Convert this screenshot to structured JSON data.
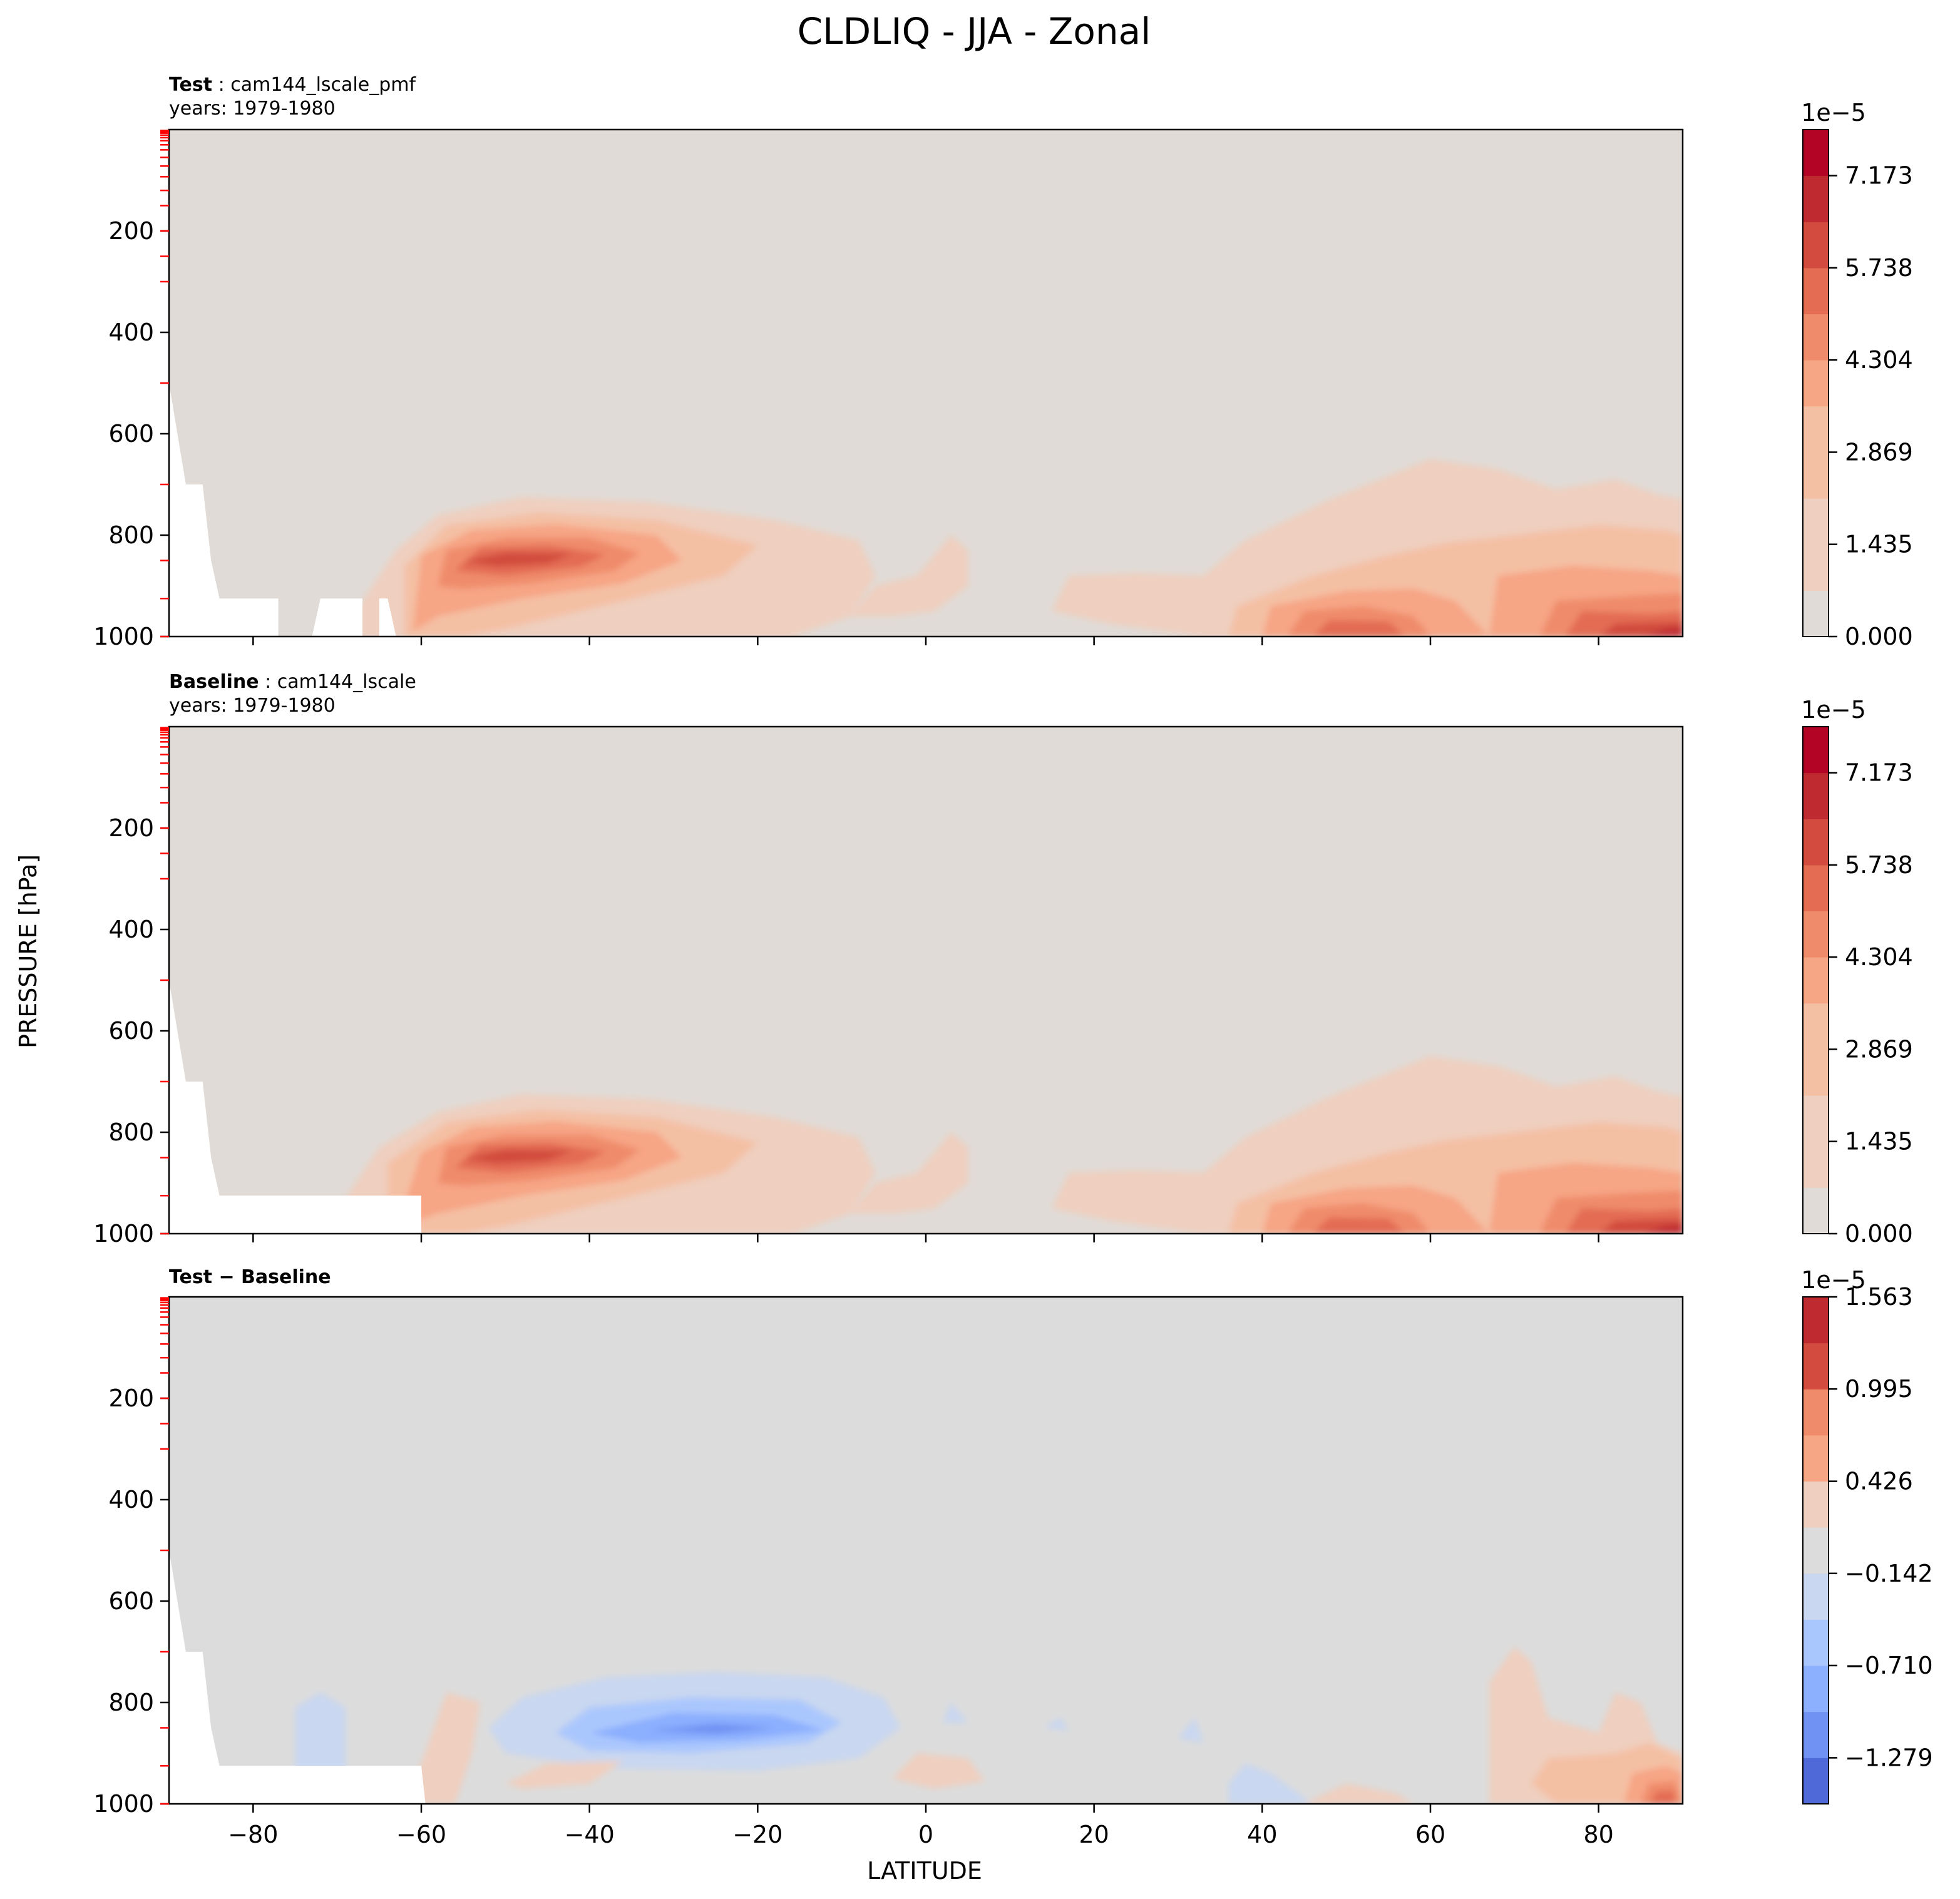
{
  "figure": {
    "title": "CLDLIQ - JJA - Zonal",
    "ylabel": "PRESSURE [hPa]",
    "xlabel": "LATITUDE"
  },
  "colors": {
    "background_field": "#e0dbd6",
    "diff_background": "#dcdcdc",
    "missing": "#ffffff",
    "warm": [
      "#e0dbd6",
      "#efcfbf",
      "#f4c0a4",
      "#f6a585",
      "#ef8b6a",
      "#e36c53",
      "#d24b3e",
      "#bf2a31",
      "#b40426"
    ],
    "cool": [
      "#c9d7f0",
      "#aac7fd",
      "#8caffe",
      "#6f92f3",
      "#4f69d9"
    ],
    "level_tick": "#ff0000"
  },
  "chart_data": [
    {
      "type": "contourf",
      "panel_label": "Test",
      "case_name": "cam144_lscale_pmf",
      "years": "years: 1979-1980",
      "xlim": [
        -90,
        90
      ],
      "ylim": [
        1000,
        0
      ],
      "xticks": [
        "−80",
        "−60",
        "−40",
        "−20",
        "0",
        "20",
        "40",
        "60",
        "80"
      ],
      "xtick_values": [
        -80,
        -60,
        -40,
        -20,
        0,
        20,
        40,
        60,
        80
      ],
      "yticks": [
        "200",
        "400",
        "600",
        "800",
        "1000"
      ],
      "ytick_values": [
        200,
        400,
        600,
        800,
        1000
      ],
      "colorbar": {
        "offset": "1e−5",
        "ticks": [
          "0.000",
          "1.435",
          "2.869",
          "4.304",
          "5.738",
          "7.173"
        ],
        "tick_values": [
          0,
          1.435,
          2.869,
          4.304,
          5.738,
          7.173
        ],
        "range": [
          0,
          7.89
        ],
        "levels": 11
      },
      "features": [
        {
          "name": "southern-midlatitude-max",
          "lat_range": [
            -70,
            -10
          ],
          "p_range": [
            720,
            1000
          ],
          "peak_lat": -50,
          "peak_p": 850,
          "peak_value": 4.8
        },
        {
          "name": "equatorial-lobe",
          "lat_range": [
            -10,
            5
          ],
          "p_range": [
            780,
            960
          ],
          "peak_value": 1.4
        },
        {
          "name": "northern-max",
          "lat_range": [
            15,
            90
          ],
          "p_range": [
            640,
            1000
          ],
          "peak_lat": 88,
          "peak_p": 990,
          "peak_value": 7.5
        }
      ]
    },
    {
      "type": "contourf",
      "panel_label": "Baseline",
      "case_name": "cam144_lscale",
      "years": "years: 1979-1980",
      "xlim": [
        -90,
        90
      ],
      "ylim": [
        1000,
        0
      ],
      "xticks": [
        "−80",
        "−60",
        "−40",
        "−20",
        "0",
        "20",
        "40",
        "60",
        "80"
      ],
      "xtick_values": [
        -80,
        -60,
        -40,
        -20,
        0,
        20,
        40,
        60,
        80
      ],
      "yticks": [
        "200",
        "400",
        "600",
        "800",
        "1000"
      ],
      "ytick_values": [
        200,
        400,
        600,
        800,
        1000
      ],
      "colorbar": {
        "offset": "1e−5",
        "ticks": [
          "0.000",
          "1.435",
          "2.869",
          "4.304",
          "5.738",
          "7.173"
        ],
        "tick_values": [
          0,
          1.435,
          2.869,
          4.304,
          5.738,
          7.173
        ],
        "range": [
          0,
          7.89
        ],
        "levels": 11
      },
      "features": [
        {
          "name": "southern-midlatitude-max",
          "lat_range": [
            -75,
            -5
          ],
          "p_range": [
            710,
            1000
          ],
          "peak_lat": -48,
          "peak_p": 845,
          "peak_value": 5.3
        },
        {
          "name": "equatorial-lobe",
          "lat_range": [
            -10,
            5
          ],
          "p_range": [
            780,
            960
          ],
          "peak_value": 1.4
        },
        {
          "name": "northern-max",
          "lat_range": [
            15,
            90
          ],
          "p_range": [
            640,
            1000
          ],
          "peak_lat": 88,
          "peak_p": 990,
          "peak_value": 7.2
        }
      ]
    },
    {
      "type": "contourf",
      "panel_label": "Test − Baseline",
      "xlim": [
        -90,
        90
      ],
      "ylim": [
        1000,
        0
      ],
      "xticks": [
        "−80",
        "−60",
        "−40",
        "−20",
        "0",
        "20",
        "40",
        "60",
        "80"
      ],
      "xtick_values": [
        -80,
        -60,
        -40,
        -20,
        0,
        20,
        40,
        60,
        80
      ],
      "yticks": [
        "200",
        "400",
        "600",
        "800",
        "1000"
      ],
      "ytick_values": [
        200,
        400,
        600,
        800,
        1000
      ],
      "colorbar": {
        "offset": "1e−5",
        "ticks": [
          "−1.279",
          "−0.710",
          "−0.142",
          "0.426",
          "0.995",
          "1.563"
        ],
        "tick_values": [
          -1.279,
          -0.71,
          -0.142,
          0.426,
          0.995,
          1.563
        ],
        "range": [
          -1.563,
          1.563
        ],
        "levels": 11
      },
      "features": [
        {
          "name": "southern-negative",
          "lat_range": [
            -52,
            -3
          ],
          "p_range": [
            730,
            930
          ],
          "peak_lat": -28,
          "peak_p": 850,
          "peak_value": -1.2
        },
        {
          "name": "northern-positive",
          "lat_range": [
            67,
            90
          ],
          "p_range": [
            690,
            1000
          ],
          "peak_lat": 86,
          "peak_p": 960,
          "peak_value": 1.4
        }
      ]
    }
  ]
}
